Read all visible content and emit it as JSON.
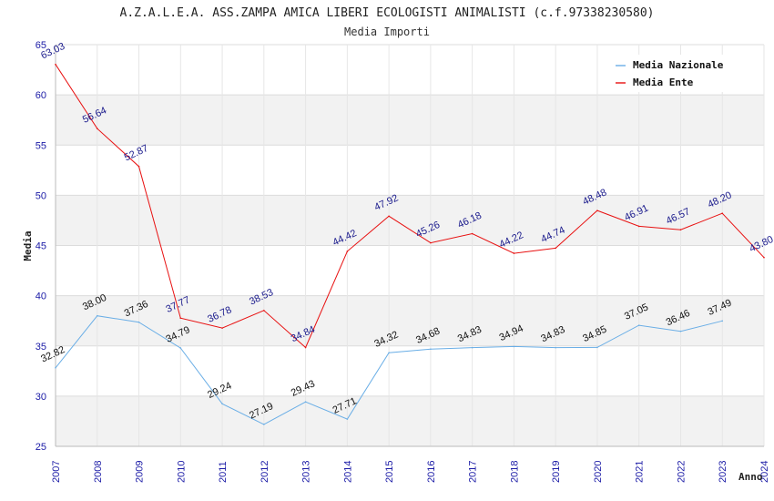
{
  "chart_data": {
    "type": "line",
    "title": "A.Z.A.L.E.A. ASS.ZAMPA AMICA LIBERI ECOLOGISTI ANIMALISTI (c.f.97338230580)",
    "subtitle": "Media Importi",
    "xlabel": "Anno",
    "ylabel": "Media",
    "ylim": [
      25,
      65
    ],
    "yticks": [
      25,
      30,
      35,
      40,
      45,
      50,
      55,
      60,
      65
    ],
    "x": [
      "2007",
      "2008",
      "2009",
      "2010",
      "2011",
      "2012",
      "2013",
      "2014",
      "2015",
      "2016",
      "2017",
      "2018",
      "2019",
      "2020",
      "2021",
      "2022",
      "2023",
      "2024"
    ],
    "grid": true,
    "legend_position": "top-right",
    "series": [
      {
        "name": "Media Nazionale",
        "color": "#6aaee6",
        "values": [
          32.82,
          38.0,
          37.36,
          34.79,
          29.24,
          27.19,
          29.43,
          27.71,
          34.32,
          34.68,
          34.83,
          34.94,
          34.83,
          34.85,
          37.05,
          36.46,
          37.49,
          null
        ],
        "labels": [
          "32.82",
          "38.00",
          "37.36",
          "34.79",
          "29.24",
          "27.19",
          "29.43",
          "27.71",
          "34.32",
          "34.68",
          "34.83",
          "34.94",
          "34.83",
          "34.85",
          "37.05",
          "36.46",
          "37.49",
          ""
        ]
      },
      {
        "name": "Media Ente",
        "color": "#e81010",
        "values": [
          63.03,
          56.64,
          52.87,
          37.77,
          36.78,
          38.53,
          34.84,
          44.42,
          47.92,
          45.26,
          46.18,
          44.22,
          44.74,
          48.48,
          46.91,
          46.57,
          48.2,
          43.8
        ],
        "labels": [
          "63.03",
          "56.64",
          "52.87",
          "37.77",
          "36.78",
          "38.53",
          "34.84",
          "44.42",
          "47.92",
          "45.26",
          "46.18",
          "44.22",
          "44.74",
          "48.48",
          "46.91",
          "46.57",
          "48.20",
          "43.80"
        ]
      }
    ]
  }
}
